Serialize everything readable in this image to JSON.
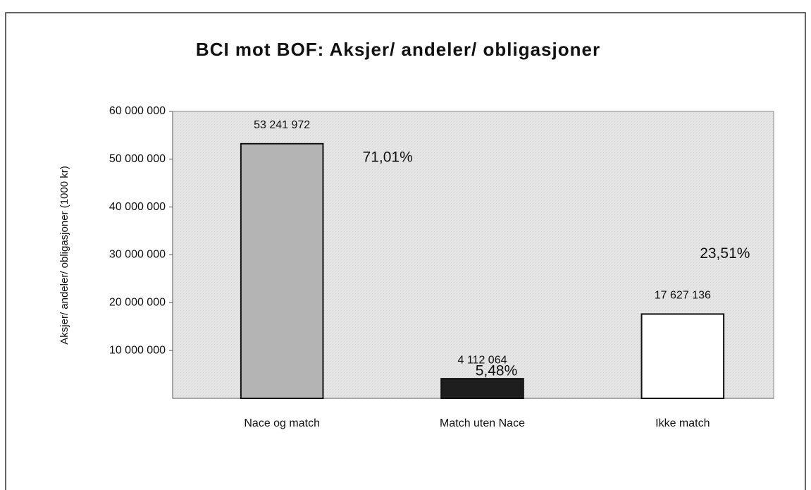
{
  "chart_data": {
    "type": "bar",
    "title": "BCI mot BOF: Aksjer/ andeler/ obligasjoner",
    "y_label": "Aksjer/ andeler/ obligasjoner (1000 kr)",
    "categories": [
      "Nace og match",
      "Match uten Nace",
      "Ikke match"
    ],
    "values": [
      53241972,
      4112064,
      17627136
    ],
    "value_labels": [
      "53 241 972",
      "4 112 064",
      "17 627 136"
    ],
    "shares": [
      71.01,
      5.48,
      23.51
    ],
    "share_labels": [
      "71,01%",
      "5,48%",
      "23,51%"
    ],
    "colors": [
      "#b4b4b4",
      "#1e1e1e",
      "#ffffff"
    ],
    "ylim": [
      0,
      60000000
    ],
    "yticks": [
      {
        "value": 10000000,
        "label": "10 000 000"
      },
      {
        "value": 20000000,
        "label": "20 000 000"
      },
      {
        "value": 30000000,
        "label": "30 000 000"
      },
      {
        "value": 40000000,
        "label": "40 000 000"
      },
      {
        "value": 50000000,
        "label": "50 000 000"
      },
      {
        "value": 60000000,
        "label": "60 000 000"
      }
    ],
    "grid": false
  }
}
